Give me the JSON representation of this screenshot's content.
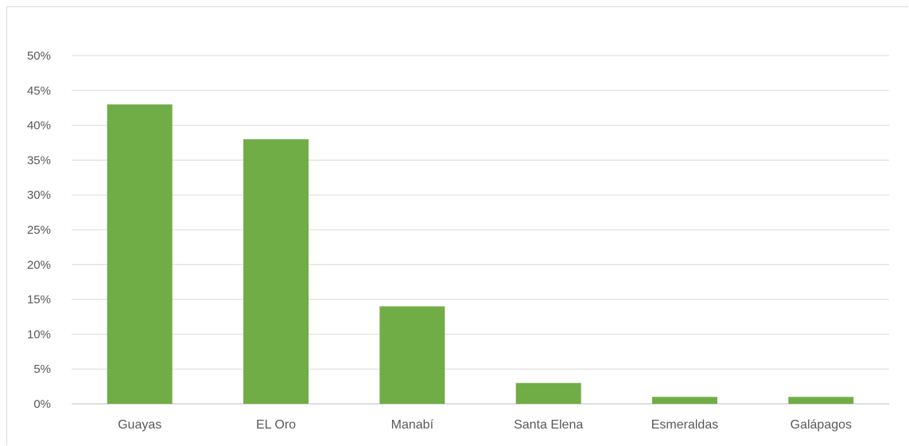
{
  "chart_data": {
    "type": "bar",
    "categories": [
      "Guayas",
      "EL Oro",
      "Manabí",
      "Santa Elena",
      "Esmeraldas",
      "Galápagos"
    ],
    "values": [
      0.43,
      0.38,
      0.14,
      0.03,
      0.01,
      0.01
    ],
    "ylim": [
      0,
      0.5
    ],
    "yticks": [
      0,
      0.05,
      0.1,
      0.15,
      0.2,
      0.25,
      0.3,
      0.35,
      0.4,
      0.45,
      0.5
    ],
    "ytick_labels": [
      "0%",
      "5%",
      "10%",
      "15%",
      "20%",
      "25%",
      "30%",
      "35%",
      "40%",
      "45%",
      "50%"
    ],
    "title": "",
    "xlabel": "",
    "ylabel": "",
    "grid": true,
    "legend": "none",
    "colors": {
      "bar": "#70ad47",
      "grid": "#d9d9d9",
      "text": "#595959"
    }
  }
}
